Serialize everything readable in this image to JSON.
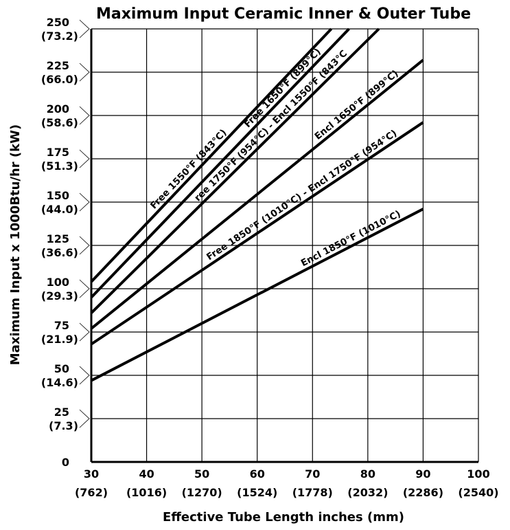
{
  "chart_data": {
    "type": "line",
    "title": "Maximum Input Ceramic Inner & Outer Tube",
    "xlabel": "Effective Tube Length inches (mm)",
    "ylabel": "Maximum Input x 1000Btu/hr (kW)",
    "xlim": [
      30,
      100
    ],
    "ylim": [
      0,
      250
    ],
    "grid": true,
    "x_ticks": [
      {
        "value": 30,
        "label": "30",
        "sublabel": "(762)"
      },
      {
        "value": 40,
        "label": "40",
        "sublabel": "(1016)"
      },
      {
        "value": 50,
        "label": "50",
        "sublabel": "(1270)"
      },
      {
        "value": 60,
        "label": "60",
        "sublabel": "(1524)"
      },
      {
        "value": 70,
        "label": "70",
        "sublabel": "(1778)"
      },
      {
        "value": 80,
        "label": "80",
        "sublabel": "(2032)"
      },
      {
        "value": 90,
        "label": "90",
        "sublabel": "(2286)"
      },
      {
        "value": 100,
        "label": "100",
        "sublabel": "(2540)"
      }
    ],
    "y_ticks": [
      {
        "value": 0,
        "label": "0",
        "sublabel": ""
      },
      {
        "value": 25,
        "label": "25",
        "sublabel": "(7.3)"
      },
      {
        "value": 50,
        "label": "50",
        "sublabel": "(14.6)"
      },
      {
        "value": 75,
        "label": "75",
        "sublabel": "(21.9)"
      },
      {
        "value": 100,
        "label": "100",
        "sublabel": "(29.3)"
      },
      {
        "value": 125,
        "label": "125",
        "sublabel": "(36.6)"
      },
      {
        "value": 150,
        "label": "150",
        "sublabel": "(44.0)"
      },
      {
        "value": 175,
        "label": "175",
        "sublabel": "(51.3)"
      },
      {
        "value": 200,
        "label": "200",
        "sublabel": "(58.6)"
      },
      {
        "value": 225,
        "label": "225",
        "sublabel": "(66.0)"
      },
      {
        "value": 250,
        "label": "250",
        "sublabel": "(73.2)"
      }
    ],
    "series": [
      {
        "name": "Free 1550°F (843°C)",
        "x": [
          30,
          73.4
        ],
        "y": [
          104,
          250
        ],
        "label_x": [
          40,
          57
        ]
      },
      {
        "name": "Free 1650°F (899°C)",
        "x": [
          30,
          76.6
        ],
        "y": [
          95,
          250
        ],
        "label_x": [
          58.5,
          72.5
        ]
      },
      {
        "name": "Free 1750°F (954°C) - Encl 1550°F (843°C)",
        "x": [
          30,
          82
        ],
        "y": [
          86,
          250
        ],
        "label_x": [
          49.5,
          77
        ]
      },
      {
        "name": "Encl 1650°F (899°C)",
        "x": [
          30,
          90
        ],
        "y": [
          77,
          232
        ],
        "label_x": [
          70,
          87.5
        ]
      },
      {
        "name": "Free 1850°F (1010°C) - Encl 1750°F (954°C)",
        "x": [
          30,
          90
        ],
        "y": [
          68,
          196
        ],
        "label_x": [
          49.5,
          88
        ]
      },
      {
        "name": "Encl 1850°F (1010°C)",
        "x": [
          30,
          90
        ],
        "y": [
          47,
          146
        ],
        "label_x": [
          67,
          88
        ]
      }
    ]
  }
}
